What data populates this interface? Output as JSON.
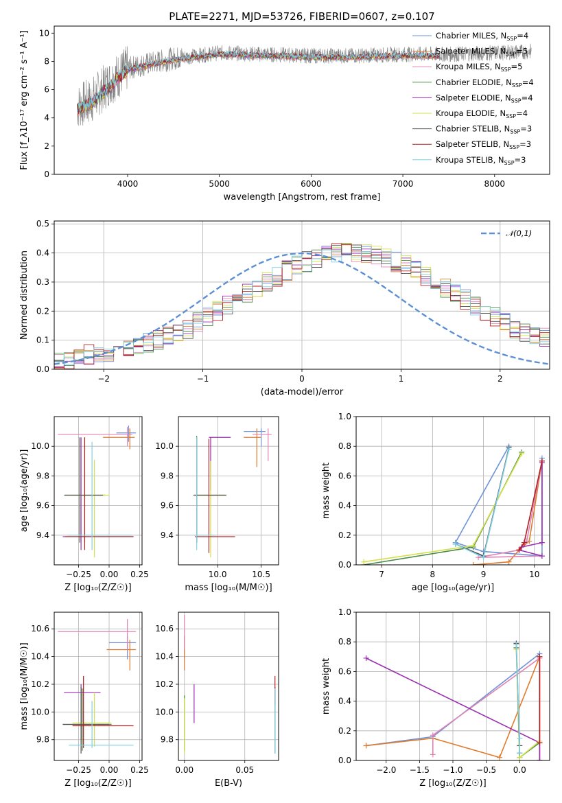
{
  "figure": {
    "title": "PLATE=2271, MJD=53726, FIBERID=0607, z=0.107"
  },
  "model_colors": [
    "#6f93d9",
    "#e07b2e",
    "#e083b4",
    "#4a8a4a",
    "#9a2fb0",
    "#d4e04a",
    "#555555",
    "#b02020",
    "#7fd0e6"
  ],
  "chart_data": [
    {
      "id": "spectrum",
      "type": "line",
      "xlabel": "wavelength [Angstrom, rest frame]",
      "ylabel": "Flux [f_λ10⁻¹⁷ erg cm⁻² s⁻¹ A⁻¹]",
      "xlim": [
        3200,
        8600
      ],
      "ylim": [
        0,
        10.5
      ],
      "xticks": [
        4000,
        5000,
        6000,
        7000,
        8000
      ],
      "yticks": [
        0,
        2,
        4,
        6,
        8,
        10
      ],
      "grid": false,
      "legend_position": "right",
      "legend": [
        {
          "label": "Chabrier MILES, N",
          "sub": "SSP",
          "eq": "=4"
        },
        {
          "label": "Salpeter MILES, N",
          "sub": "SSP",
          "eq": "=5"
        },
        {
          "label": "Kroupa MILES, N",
          "sub": "SSP",
          "eq": "=5"
        },
        {
          "label": "Chabrier ELODIE, N",
          "sub": "SSP",
          "eq": "=4"
        },
        {
          "label": "Salpeter ELODIE, N",
          "sub": "SSP",
          "eq": "=4"
        },
        {
          "label": "Kroupa ELODIE, N",
          "sub": "SSP",
          "eq": "=4"
        },
        {
          "label": "Chabrier STELIB, N",
          "sub": "SSP",
          "eq": "=3"
        },
        {
          "label": "Salpeter STELIB, N",
          "sub": "SSP",
          "eq": "=3"
        },
        {
          "label": "Kroupa STELIB, N",
          "sub": "SSP",
          "eq": "=3"
        }
      ],
      "data_envelope": {
        "x": [
          3450,
          3600,
          3800,
          4000,
          4200,
          4500,
          5000,
          5500,
          6000,
          6500,
          7000,
          7500,
          8000,
          8400
        ],
        "y": [
          4.8,
          5.2,
          6.5,
          7.5,
          7.8,
          8.2,
          8.6,
          8.5,
          8.4,
          8.4,
          8.5,
          8.5,
          8.6,
          8.7
        ]
      },
      "model_continuum": {
        "x": [
          3450,
          3600,
          3800,
          4000,
          4200,
          4500,
          5000,
          5500,
          6000,
          6500,
          7000,
          7400
        ],
        "y": [
          4.6,
          5.0,
          6.2,
          7.4,
          7.7,
          8.1,
          8.5,
          8.4,
          8.3,
          8.3,
          8.4,
          8.4
        ]
      }
    },
    {
      "id": "residuals",
      "type": "line",
      "xlabel": "(data-model)/error",
      "ylabel": "Normed distribution",
      "xlim": [
        -2.5,
        2.5
      ],
      "ylim": [
        0,
        0.51
      ],
      "xticks": [
        -2,
        -1,
        0,
        1,
        2
      ],
      "yticks": [
        0.0,
        0.1,
        0.2,
        0.3,
        0.4,
        0.5
      ],
      "grid": true,
      "legend_position": "top-right",
      "reference": {
        "label": "𝒩(0,1)",
        "mean": 0,
        "sigma": 1
      },
      "bin_width": 0.1,
      "hist_base": [
        0.03,
        0.03,
        0.04,
        0.05,
        0.05,
        0.06,
        0.06,
        0.07,
        0.08,
        0.09,
        0.1,
        0.11,
        0.12,
        0.14,
        0.16,
        0.18,
        0.2,
        0.22,
        0.24,
        0.26,
        0.28,
        0.3,
        0.32,
        0.34,
        0.36,
        0.37,
        0.38,
        0.39,
        0.4,
        0.4,
        0.4,
        0.4,
        0.39,
        0.38,
        0.37,
        0.36,
        0.34,
        0.32,
        0.3,
        0.28,
        0.26,
        0.24,
        0.22,
        0.2,
        0.18,
        0.16,
        0.14,
        0.13,
        0.12,
        0.11
      ]
    },
    {
      "id": "age-vs-Z",
      "type": "scatter",
      "xlabel": "Z [log₁₀(Z/Z☉)]",
      "ylabel": "age  [log₁₀(age/yr)]",
      "xlim": [
        -0.45,
        0.27
      ],
      "ylim": [
        9.2,
        10.2
      ],
      "xticks": [
        -0.25,
        0.0,
        0.25
      ],
      "yticks": [
        9.4,
        9.6,
        9.8,
        10.0
      ],
      "grid": true,
      "errorbars": [
        {
          "x": 0.16,
          "y": 10.09,
          "xlo": 0.06,
          "xhi": 0.22,
          "ylo": 10.03,
          "yhi": 10.14,
          "c": 0
        },
        {
          "x": 0.17,
          "y": 10.06,
          "xlo": -0.05,
          "xhi": 0.21,
          "ylo": 9.98,
          "yhi": 10.12,
          "c": 1
        },
        {
          "x": 0.15,
          "y": 10.08,
          "xlo": -0.42,
          "xhi": 0.19,
          "ylo": 10.0,
          "yhi": 10.13,
          "c": 2
        },
        {
          "x": -0.2,
          "y": 9.67,
          "xlo": -0.37,
          "xhi": -0.03,
          "ylo": 9.35,
          "yhi": 10.06,
          "c": 3
        },
        {
          "x": -0.23,
          "y": 9.39,
          "xlo": -0.38,
          "xhi": 0.2,
          "ylo": 9.3,
          "yhi": 10.06,
          "c": 4
        },
        {
          "x": -0.12,
          "y": 9.67,
          "xlo": -0.32,
          "xhi": 0.0,
          "ylo": 9.25,
          "yhi": 9.91,
          "c": 5
        },
        {
          "x": -0.24,
          "y": 9.67,
          "xlo": -0.36,
          "xhi": -0.05,
          "ylo": 9.35,
          "yhi": 10.06,
          "c": 6
        },
        {
          "x": -0.2,
          "y": 9.39,
          "xlo": -0.36,
          "xhi": 0.2,
          "ylo": 9.3,
          "yhi": 10.06,
          "c": 7
        },
        {
          "x": -0.14,
          "y": 9.4,
          "xlo": -0.34,
          "xhi": 0.19,
          "ylo": 9.3,
          "yhi": 10.03,
          "c": 8
        }
      ]
    },
    {
      "id": "age-vs-mass",
      "type": "scatter",
      "xlabel": "mass [log₁₀(M/M☉)]",
      "ylabel": "",
      "xlim": [
        9.55,
        10.7
      ],
      "ylim": [
        9.2,
        10.2
      ],
      "xticks": [
        10.0,
        10.5
      ],
      "yticks": [
        9.4,
        9.6,
        9.8,
        10.0
      ],
      "grid": true,
      "errorbars": [
        {
          "x": 10.5,
          "y": 10.1,
          "xlo": 10.3,
          "xhi": 10.55,
          "ylo": 10.0,
          "yhi": 10.12,
          "c": 0
        },
        {
          "x": 10.45,
          "y": 10.06,
          "xlo": 10.3,
          "xhi": 10.5,
          "ylo": 9.86,
          "yhi": 10.12,
          "c": 1
        },
        {
          "x": 10.58,
          "y": 10.08,
          "xlo": 10.4,
          "xhi": 10.62,
          "ylo": 9.9,
          "yhi": 10.12,
          "c": 2
        },
        {
          "x": 9.76,
          "y": 9.67,
          "xlo": 9.72,
          "xhi": 10.1,
          "ylo": 9.35,
          "yhi": 10.07,
          "c": 3
        },
        {
          "x": 9.92,
          "y": 10.06,
          "xlo": 9.9,
          "xhi": 10.15,
          "ylo": 9.7,
          "yhi": 10.06,
          "c": 4
        },
        {
          "x": 9.92,
          "y": 9.67,
          "xlo": 9.75,
          "xhi": 10.1,
          "ylo": 9.25,
          "yhi": 9.9,
          "c": 5
        },
        {
          "x": 9.76,
          "y": 9.67,
          "xlo": 9.73,
          "xhi": 10.1,
          "ylo": 9.35,
          "yhi": 10.06,
          "c": 6
        },
        {
          "x": 9.9,
          "y": 9.39,
          "xlo": 9.74,
          "xhi": 10.2,
          "ylo": 9.28,
          "yhi": 10.05,
          "c": 7
        },
        {
          "x": 9.76,
          "y": 9.4,
          "xlo": 9.73,
          "xhi": 9.97,
          "ylo": 9.3,
          "yhi": 10.06,
          "c": 8
        }
      ]
    },
    {
      "id": "weight-vs-age",
      "type": "line",
      "xlabel": "age  [log₁₀(age/yr)]",
      "ylabel": "mass weight",
      "xlim": [
        6.5,
        10.3
      ],
      "ylim": [
        0,
        1.0
      ],
      "xticks": [
        7,
        8,
        9,
        10
      ],
      "yticks": [
        0.0,
        0.2,
        0.4,
        0.6,
        0.8,
        1.0
      ],
      "grid": true,
      "series": [
        {
          "c": 0,
          "x": [
            10.15,
            10.15,
            9.0,
            8.45,
            9.5
          ],
          "y": [
            0.72,
            0.06,
            0.09,
            0.15,
            0.8
          ]
        },
        {
          "c": 1,
          "x": [
            8.8,
            9.5,
            9.7,
            9.9,
            10.15
          ],
          "y": [
            0.0,
            0.02,
            0.1,
            0.16,
            0.7
          ]
        },
        {
          "c": 2,
          "x": [
            10.15,
            9.85,
            9.7,
            8.9,
            10.15
          ],
          "y": [
            0.7,
            0.16,
            0.1,
            0.05,
            0.06
          ]
        },
        {
          "c": 3,
          "x": [
            6.65,
            8.8,
            9.75
          ],
          "y": [
            0.0,
            0.12,
            0.76
          ]
        },
        {
          "c": 4,
          "x": [
            10.15,
            10.15,
            9.75,
            9.7,
            10.15
          ],
          "y": [
            0.69,
            0.15,
            0.12,
            0.1,
            0.06
          ]
        },
        {
          "c": 5,
          "x": [
            6.65,
            8.8,
            9.75
          ],
          "y": [
            0.02,
            0.13,
            0.75
          ]
        },
        {
          "c": 6,
          "x": [
            8.45,
            9.0,
            9.5
          ],
          "y": [
            0.14,
            0.06,
            0.79
          ]
        },
        {
          "c": 7,
          "x": [
            9.7,
            9.8,
            10.15
          ],
          "y": [
            0.1,
            0.15,
            0.7
          ]
        },
        {
          "c": 8,
          "x": [
            8.45,
            9.0,
            9.5
          ],
          "y": [
            0.14,
            0.05,
            0.78
          ]
        }
      ]
    },
    {
      "id": "mass-vs-Z",
      "type": "scatter",
      "xlabel": "Z [log₁₀(Z/Z☉)]",
      "ylabel": "mass [log₁₀(M/M☉)]",
      "xlim": [
        -0.45,
        0.27
      ],
      "ylim": [
        9.65,
        10.72
      ],
      "xticks": [
        -0.25,
        0.0,
        0.25
      ],
      "yticks": [
        9.8,
        10.0,
        10.2,
        10.4,
        10.6
      ],
      "grid": true,
      "errorbars": [
        {
          "x": 0.15,
          "y": 10.5,
          "xlo": 0.0,
          "xhi": 0.22,
          "ylo": 10.38,
          "yhi": 10.55,
          "c": 0
        },
        {
          "x": 0.17,
          "y": 10.45,
          "xlo": -0.02,
          "xhi": 0.22,
          "ylo": 10.3,
          "yhi": 10.52,
          "c": 1
        },
        {
          "x": 0.15,
          "y": 10.58,
          "xlo": -0.42,
          "xhi": 0.22,
          "ylo": 10.45,
          "yhi": 10.67,
          "c": 2
        },
        {
          "x": -0.22,
          "y": 9.91,
          "xlo": -0.38,
          "xhi": 0.02,
          "ylo": 9.72,
          "yhi": 10.17,
          "c": 3
        },
        {
          "x": -0.23,
          "y": 10.14,
          "xlo": -0.37,
          "xhi": -0.07,
          "ylo": 9.8,
          "yhi": 10.2,
          "c": 4
        },
        {
          "x": -0.12,
          "y": 9.92,
          "xlo": -0.3,
          "xhi": 0.02,
          "ylo": 9.75,
          "yhi": 10.14,
          "c": 5
        },
        {
          "x": -0.23,
          "y": 9.91,
          "xlo": -0.38,
          "xhi": 0.0,
          "ylo": 9.7,
          "yhi": 10.18,
          "c": 6
        },
        {
          "x": -0.21,
          "y": 9.9,
          "xlo": -0.3,
          "xhi": 0.2,
          "ylo": 9.74,
          "yhi": 10.26,
          "c": 7
        },
        {
          "x": -0.14,
          "y": 9.76,
          "xlo": -0.33,
          "xhi": 0.2,
          "ylo": 9.74,
          "yhi": 10.08,
          "c": 8
        }
      ]
    },
    {
      "id": "mass-vs-ebv",
      "type": "scatter",
      "xlabel": "E(B-V)",
      "ylabel": "",
      "xlim": [
        -0.005,
        0.078
      ],
      "ylim": [
        9.65,
        10.72
      ],
      "xticks": [
        0.0,
        0.05
      ],
      "yticks": [
        9.8,
        10.0,
        10.2,
        10.4,
        10.6
      ],
      "grid": true,
      "errorbars": [
        {
          "x": 0.0,
          "y": 10.5,
          "ylo": 10.38,
          "yhi": 10.55,
          "c": 0
        },
        {
          "x": 0.0,
          "y": 10.45,
          "ylo": 10.3,
          "yhi": 10.55,
          "c": 1
        },
        {
          "x": 0.0,
          "y": 10.58,
          "ylo": 10.45,
          "yhi": 10.7,
          "c": 2
        },
        {
          "x": 0.0,
          "y": 9.91,
          "ylo": 9.72,
          "yhi": 10.12,
          "c": 3
        },
        {
          "x": 0.008,
          "y": 10.14,
          "ylo": 9.92,
          "yhi": 10.2,
          "c": 4
        },
        {
          "x": 0.0,
          "y": 9.92,
          "ylo": 9.7,
          "yhi": 10.1,
          "c": 5
        },
        {
          "x": 0.075,
          "y": 9.91,
          "ylo": 9.7,
          "yhi": 10.18,
          "c": 6
        },
        {
          "x": 0.075,
          "y": 10.2,
          "ylo": 10.05,
          "yhi": 10.26,
          "c": 7
        },
        {
          "x": 0.075,
          "y": 9.9,
          "ylo": 9.7,
          "yhi": 10.17,
          "c": 8
        }
      ]
    },
    {
      "id": "weight-vs-Z",
      "type": "line",
      "xlabel": "Z [log₁₀(Z/Z☉)]",
      "ylabel": "mass weight",
      "xlim": [
        -2.45,
        0.45
      ],
      "ylim": [
        0,
        1.0
      ],
      "xticks": [
        -2.0,
        -1.5,
        -1.0,
        -0.5,
        0.0
      ],
      "yticks": [
        0.0,
        0.2,
        0.4,
        0.6,
        0.8,
        1.0
      ],
      "grid": true,
      "series": [
        {
          "c": 0,
          "x": [
            -2.3,
            -1.3,
            0.3
          ],
          "y": [
            0.1,
            0.16,
            0.72
          ]
        },
        {
          "c": 1,
          "x": [
            -2.3,
            -1.3,
            -0.3,
            0.3,
            0.3
          ],
          "y": [
            0.1,
            0.15,
            0.02,
            0.7,
            0.0
          ]
        },
        {
          "c": 2,
          "x": [
            -1.3,
            -1.3,
            0.3,
            0.3
          ],
          "y": [
            0.04,
            0.17,
            0.69,
            0.0
          ]
        },
        {
          "c": 3,
          "x": [
            -0.05,
            0.0,
            0.3
          ],
          "y": [
            0.76,
            0.02,
            0.12
          ]
        },
        {
          "c": 4,
          "x": [
            -2.3,
            0.3,
            0.3
          ],
          "y": [
            0.69,
            0.12,
            0.0
          ]
        },
        {
          "c": 5,
          "x": [
            -0.05,
            0.0,
            0.3
          ],
          "y": [
            0.75,
            0.02,
            0.13
          ]
        },
        {
          "c": 6,
          "x": [
            -0.05,
            0.0,
            0.0
          ],
          "y": [
            0.79,
            0.1,
            0.05
          ]
        },
        {
          "c": 7,
          "x": [
            0.3,
            0.3
          ],
          "y": [
            0.7,
            0.12
          ]
        },
        {
          "c": 8,
          "x": [
            -0.05,
            0.0,
            0.0
          ],
          "y": [
            0.78,
            0.15,
            0.05
          ]
        }
      ]
    }
  ]
}
